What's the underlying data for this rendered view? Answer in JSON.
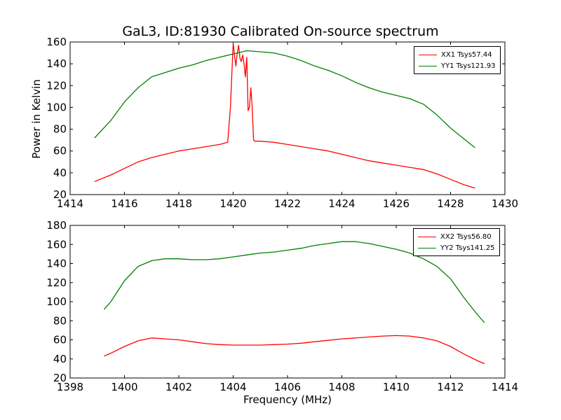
{
  "chart_data": [
    {
      "type": "line",
      "title": "GaL3, ID:81930 Calibrated On-source spectrum",
      "xlabel": "",
      "ylabel": "Power in Kelvin",
      "xlim": [
        1414,
        1430
      ],
      "ylim": [
        20,
        160
      ],
      "xticks": [
        "1414",
        "1416",
        "1418",
        "1420",
        "1422",
        "1424",
        "1426",
        "1428",
        "1430"
      ],
      "yticks": [
        "20",
        "40",
        "60",
        "80",
        "100",
        "120",
        "140",
        "160"
      ],
      "grid": false,
      "legend_position": "top-right",
      "series": [
        {
          "name": "XX1 Tsys57.44",
          "color": "#ff0000",
          "x": [
            1414.9,
            1415.5,
            1416.0,
            1416.5,
            1417.0,
            1417.5,
            1418.0,
            1418.5,
            1419.0,
            1419.5,
            1419.8,
            1419.9,
            1420.0,
            1420.05,
            1420.1,
            1420.15,
            1420.2,
            1420.25,
            1420.3,
            1420.35,
            1420.4,
            1420.45,
            1420.5,
            1420.55,
            1420.6,
            1420.65,
            1420.7,
            1420.75,
            1420.8,
            1421.0,
            1421.5,
            1422.0,
            1422.5,
            1423.0,
            1423.5,
            1424.0,
            1424.5,
            1425.0,
            1425.5,
            1426.0,
            1426.5,
            1427.0,
            1427.5,
            1428.0,
            1428.5,
            1428.9
          ],
          "values": [
            32,
            38,
            44,
            50,
            54,
            57,
            60,
            62,
            64,
            66,
            68,
            100,
            159,
            148,
            138,
            150,
            157,
            145,
            142,
            148,
            140,
            128,
            146,
            97,
            100,
            118,
            100,
            70,
            69,
            69,
            68,
            66,
            64,
            62,
            60,
            57,
            54,
            51,
            49,
            47,
            45,
            43,
            39,
            34,
            29,
            26
          ]
        },
        {
          "name": "YY1 Tsys121.93",
          "color": "#008000",
          "x": [
            1414.9,
            1415.5,
            1416.0,
            1416.5,
            1417.0,
            1417.5,
            1418.0,
            1418.5,
            1419.0,
            1419.5,
            1420.0,
            1420.5,
            1421.0,
            1421.5,
            1422.0,
            1422.5,
            1423.0,
            1423.5,
            1424.0,
            1424.5,
            1425.0,
            1425.5,
            1426.0,
            1426.5,
            1427.0,
            1427.5,
            1428.0,
            1428.5,
            1428.9
          ],
          "values": [
            72,
            88,
            105,
            118,
            128,
            132,
            136,
            139,
            143,
            146,
            149,
            152,
            151,
            150,
            147,
            143,
            138,
            134,
            129,
            123,
            118,
            114,
            111,
            108,
            103,
            93,
            81,
            71,
            63
          ]
        }
      ]
    },
    {
      "type": "line",
      "title": "",
      "xlabel": "Frequency (MHz)",
      "ylabel": "",
      "xlim": [
        1398,
        1414
      ],
      "ylim": [
        20,
        180
      ],
      "xticks": [
        "1398",
        "1400",
        "1402",
        "1404",
        "1406",
        "1408",
        "1410",
        "1412",
        "1414"
      ],
      "yticks": [
        "20",
        "40",
        "60",
        "80",
        "100",
        "120",
        "140",
        "160",
        "180"
      ],
      "grid": false,
      "legend_position": "top-right",
      "series": [
        {
          "name": "XX2 Tsys56.80",
          "color": "#ff0000",
          "x": [
            1399.25,
            1399.5,
            1400.0,
            1400.5,
            1401.0,
            1401.5,
            1402.0,
            1402.5,
            1403.0,
            1403.5,
            1404.0,
            1404.5,
            1405.0,
            1405.5,
            1406.0,
            1406.5,
            1407.0,
            1407.5,
            1408.0,
            1408.5,
            1409.0,
            1409.5,
            1410.0,
            1410.5,
            1411.0,
            1411.5,
            1412.0,
            1412.5,
            1413.0,
            1413.25
          ],
          "values": [
            43,
            46,
            53,
            59,
            62,
            61,
            60,
            58,
            56,
            55,
            54.5,
            54.5,
            54.5,
            55,
            55.5,
            56.5,
            58,
            59.5,
            61,
            62,
            63,
            64,
            64.5,
            64,
            62,
            59,
            53,
            45,
            38,
            35
          ]
        },
        {
          "name": "YY2 Tsys141.25",
          "color": "#008000",
          "x": [
            1399.25,
            1399.5,
            1400.0,
            1400.5,
            1401.0,
            1401.5,
            1402.0,
            1402.5,
            1403.0,
            1403.5,
            1404.0,
            1404.5,
            1405.0,
            1405.5,
            1406.0,
            1406.5,
            1407.0,
            1407.5,
            1408.0,
            1408.5,
            1409.0,
            1409.5,
            1410.0,
            1410.5,
            1411.0,
            1411.5,
            1412.0,
            1412.5,
            1413.0,
            1413.25
          ],
          "values": [
            92,
            100,
            122,
            137,
            143,
            145,
            145,
            144,
            144,
            145,
            147,
            149,
            151,
            152,
            154,
            156,
            159,
            161,
            163,
            163,
            161,
            158,
            155,
            151,
            145,
            137,
            124,
            104,
            86,
            78
          ]
        }
      ]
    }
  ]
}
